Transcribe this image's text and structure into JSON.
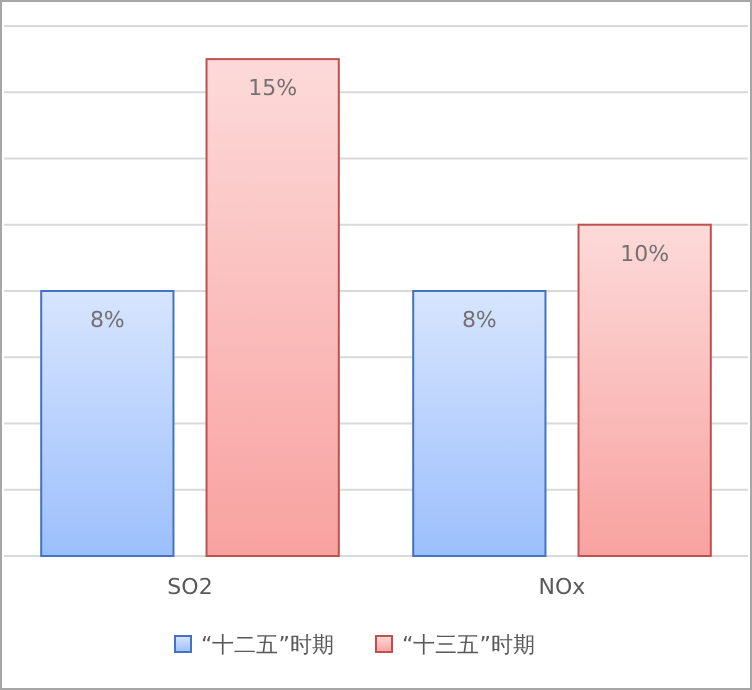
{
  "chart_data": {
    "type": "bar",
    "categories": [
      "SO2",
      "NOx"
    ],
    "series": [
      {
        "name": "“十二五”时期",
        "color": "#4472c4",
        "values": [
          8,
          8
        ],
        "value_labels": [
          "8%",
          "8%"
        ]
      },
      {
        "name": "“十三五”时期",
        "color": "#c0504d",
        "values": [
          15,
          10
        ],
        "value_labels": [
          "15%",
          "10%"
        ]
      }
    ],
    "ylim": [
      0,
      16
    ],
    "yticks": [
      {
        "value": 0,
        "label": null
      },
      {
        "value": 2,
        "label": null
      },
      {
        "value": 4,
        "label": null
      },
      {
        "value": 6,
        "label": null
      },
      {
        "value": 8,
        "label": null
      },
      {
        "value": 10,
        "label": null
      },
      {
        "value": 12,
        "label": null
      },
      {
        "value": 14,
        "label": null
      },
      {
        "value": 16,
        "label": null
      }
    ],
    "tick_labels": "x",
    "grid": "y",
    "legend": "bottom"
  }
}
